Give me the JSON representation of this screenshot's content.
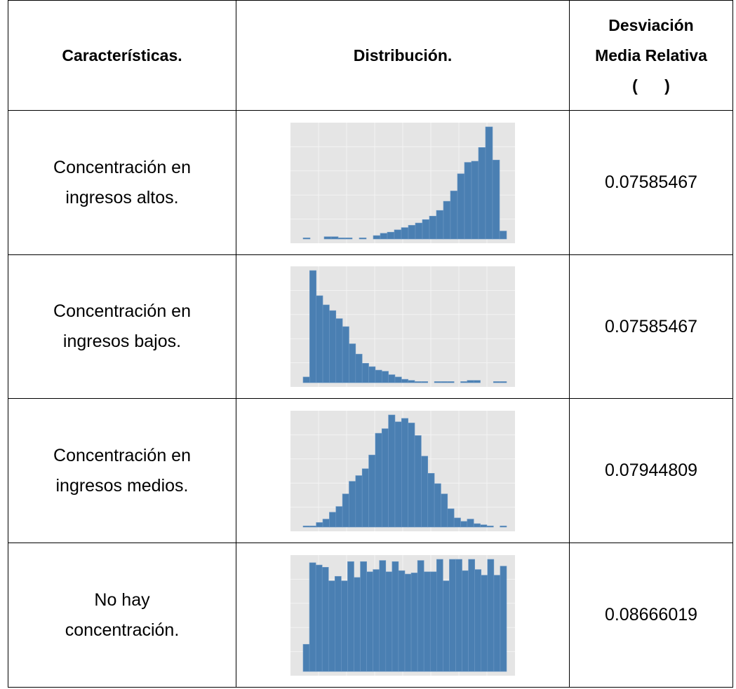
{
  "header": {
    "caracteristicas": "Características.",
    "distribucion": "Distribución.",
    "desviacion_line1": "Desviación",
    "desviacion_line2": "Media Relativa",
    "desviacion_line3": "(      )"
  },
  "rows": [
    {
      "caracteristica_line1": "Concentración en",
      "caracteristica_line2": "ingresos altos.",
      "desviacion": "0.07585467",
      "histogram": [
        1,
        0,
        0,
        2,
        2,
        1,
        1,
        0,
        1,
        0,
        3,
        5,
        6,
        8,
        10,
        12,
        14,
        17,
        20,
        25,
        33,
        42,
        57,
        67,
        68,
        80,
        98,
        69,
        7
      ]
    },
    {
      "caracteristica_line1": "Concentración en",
      "caracteristica_line2": "ingresos bajos.",
      "desviacion": "0.07585467",
      "histogram": [
        5,
        98,
        76,
        68,
        63,
        56,
        49,
        34,
        25,
        17,
        14,
        11,
        10,
        7,
        5,
        3,
        2,
        1,
        1,
        0,
        1,
        1,
        1,
        0,
        1,
        2,
        2,
        0,
        0,
        1,
        1
      ]
    },
    {
      "caracteristica_line1": "Concentración en",
      "caracteristica_line2": "ingresos medios.",
      "desviacion": "0.07944809",
      "histogram": [
        1,
        1,
        4,
        7,
        13,
        18,
        29,
        40,
        45,
        51,
        63,
        82,
        86,
        98,
        92,
        95,
        91,
        80,
        62,
        47,
        38,
        29,
        16,
        8,
        5,
        7,
        3,
        2,
        1,
        0,
        1
      ]
    },
    {
      "caracteristica_line1": "No hay",
      "caracteristica_line2": "concentración.",
      "desviacion": "0.08666019",
      "histogram": [
        24,
        96,
        94,
        92,
        80,
        84,
        80,
        97,
        83,
        97,
        88,
        90,
        98,
        88,
        97,
        89,
        86,
        87,
        98,
        88,
        88,
        99,
        80,
        99,
        99,
        89,
        99,
        90,
        85,
        99,
        85,
        93
      ]
    }
  ],
  "colors": {
    "bar_fill": "#4a7fb2",
    "bar_edge": "#6b97c4",
    "plot_bg": "#e5e5e5",
    "grid": "#f4f4f4"
  }
}
